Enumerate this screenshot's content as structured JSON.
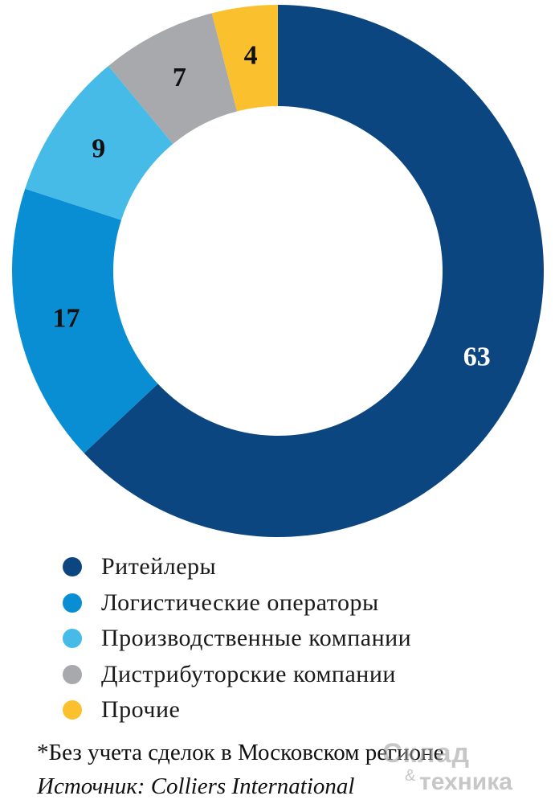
{
  "chart_data": {
    "type": "pie",
    "variant": "donut",
    "title": "",
    "categories": [
      "Ритейлеры",
      "Логистические операторы",
      "Производственные компании",
      "Дистрибуторские компании",
      "Прочие"
    ],
    "values": [
      63,
      17,
      9,
      7,
      4
    ],
    "value_labels": [
      "63",
      "17",
      "9",
      "7",
      "4"
    ],
    "colors": [
      "#0c4680",
      "#0a8ed3",
      "#47bbe8",
      "#a7a9ac",
      "#fbc02d"
    ],
    "label_colors": [
      "#ffffff",
      "#111111",
      "#111111",
      "#111111",
      "#111111"
    ],
    "legend_position": "bottom-left",
    "start_angle": "top, clockwise"
  },
  "footnote": "*Без учета сделок в Московском регионе",
  "source": "Источник: Colliers International",
  "watermark": {
    "line1": "Склад",
    "amp": "&",
    "line2": "техника"
  }
}
